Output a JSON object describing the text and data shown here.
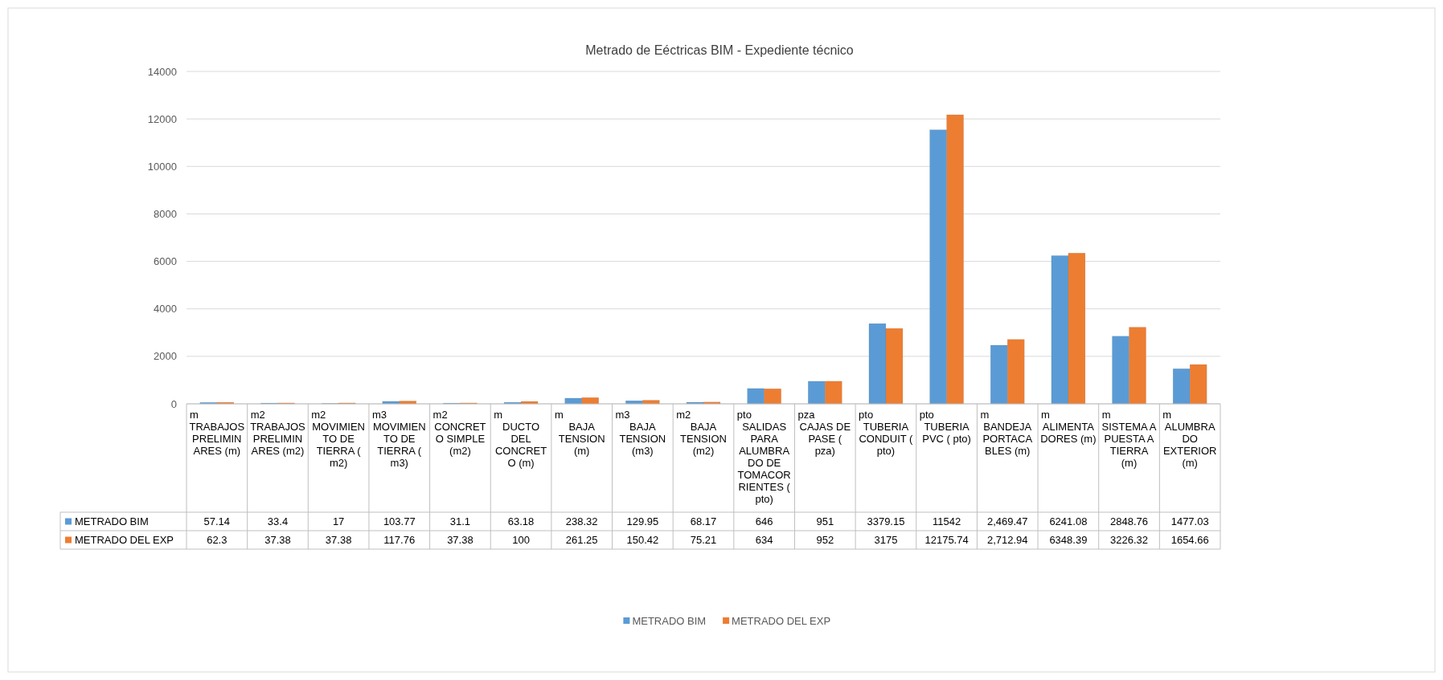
{
  "chart_data": {
    "type": "bar",
    "title": "Metrado de Eéctricas BIM - Expediente técnico",
    "categories": [
      "m\nTRABAJOS PRELIMINARES (m)",
      "m2\nTRABAJOS PRELIMINARES (m2)",
      "m2\nMOVIMIENTO DE TIERRA ( m2)",
      "m3\nMOVIMIENTO DE TIERRA ( m3)",
      "m2\nCONCRETO SIMPLE (m2)",
      "m\nDUCTO DEL CONCRETO (m)",
      "m\nBAJA TENSION (m)",
      "m3\nBAJA TENSION (m3)",
      "m2\nBAJA TENSION (m2)",
      "pto\nSALIDAS PARA ALUMBRADO DE TOMACORRIENTES ( pto)",
      "pza\nCAJAS DE PASE ( pza)",
      "pto\nTUBERIA CONDUIT ( pto)",
      "pto\nTUBERIA PVC ( pto)",
      "m\nBANDEJA PORTACABLES (m)",
      "m\nALIMENTADORES (m)",
      "m\nSISTEMA A PUESTA A TIERRA (m)",
      "m\nALUMBRADO EXTERIOR (m)"
    ],
    "series": [
      {
        "name": "METRADO BIM",
        "color": "#5b9bd5",
        "values": [
          57.14,
          33.4,
          17,
          103.77,
          31.1,
          63.18,
          238.32,
          129.95,
          68.17,
          646,
          951,
          3379.15,
          11542,
          2469.47,
          6241.08,
          2848.76,
          1477.03
        ],
        "value_labels": [
          "57.14",
          "33.4",
          "17",
          "103.77",
          "31.1",
          "63.18",
          "238.32",
          "129.95",
          "68.17",
          "646",
          "951",
          "3379.15",
          "11542",
          "2,469.47",
          "6241.08",
          "2848.76",
          "1477.03"
        ]
      },
      {
        "name": "METRADO DEL EXP",
        "color": "#ed7d31",
        "values": [
          62.3,
          37.38,
          37.38,
          117.76,
          37.38,
          100,
          261.25,
          150.42,
          75.21,
          634,
          952,
          3175,
          12175.74,
          2712.94,
          6348.39,
          3226.32,
          1654.66
        ],
        "value_labels": [
          "62.3",
          "37.38",
          "37.38",
          "117.76",
          "37.38",
          "100",
          "261.25",
          "150.42",
          "75.21",
          "634",
          "952",
          "3175",
          "12175.74",
          "2,712.94",
          "6348.39",
          "3226.32",
          "1654.66"
        ]
      }
    ],
    "ylim": [
      0,
      14000
    ],
    "yticks": [
      0,
      2000,
      4000,
      6000,
      8000,
      10000,
      12000,
      14000
    ],
    "grid": "y",
    "legend": "bottom"
  }
}
